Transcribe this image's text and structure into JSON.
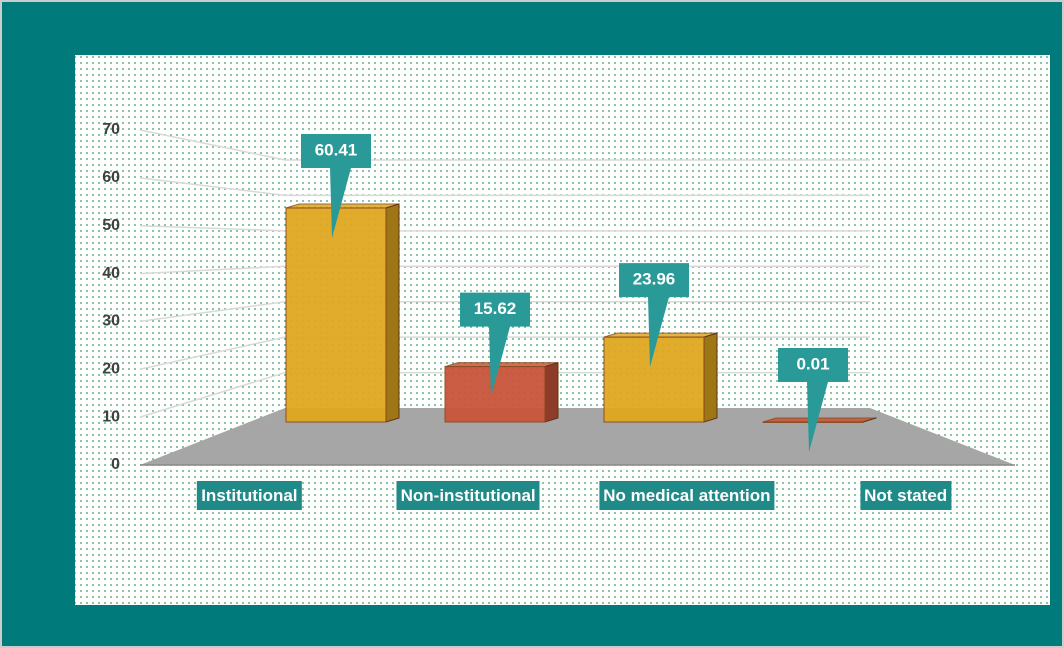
{
  "chart_data": {
    "type": "bar3d",
    "categories": [
      "Institutional",
      "Non-institutional",
      "No medical attention",
      "Not stated"
    ],
    "values": [
      60.41,
      15.62,
      23.96,
      0.01
    ],
    "colors": [
      "#e0a820",
      "#c8553a",
      "#e0a820",
      "#c8553a"
    ],
    "ylim": [
      0,
      70
    ],
    "yticks": [
      0,
      10,
      20,
      30,
      40,
      50,
      60,
      70
    ],
    "grid": true
  }
}
